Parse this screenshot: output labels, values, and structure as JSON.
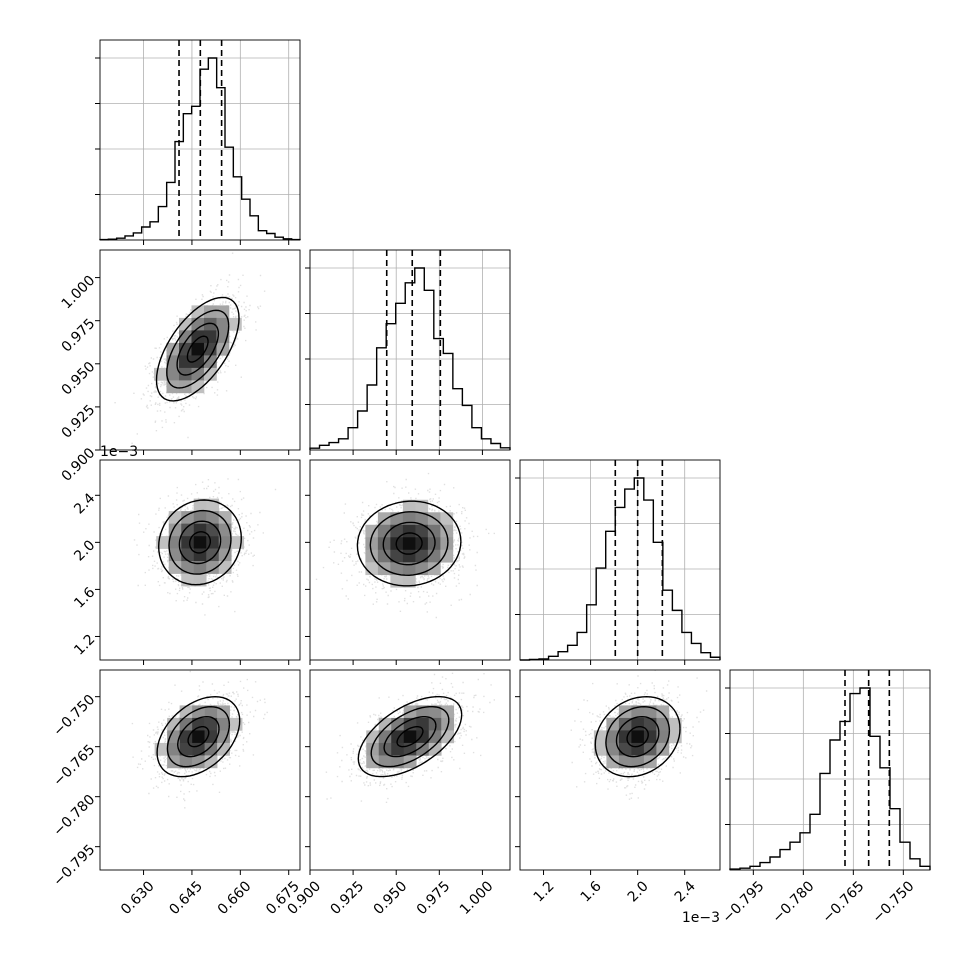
{
  "chart_data": {
    "type": "corner",
    "title": "",
    "grid": true,
    "parameters": [
      {
        "index": 0,
        "range": [
          0.6165,
          0.6785
        ],
        "ticks": [
          0.63,
          0.645,
          0.66,
          0.675
        ],
        "tick_labels": [
          "0.630",
          "0.645",
          "0.660",
          "0.675"
        ],
        "offset_text": "",
        "quantiles": [
          0.641,
          0.6476,
          0.6542
        ]
      },
      {
        "index": 1,
        "range": [
          0.9,
          1.016
        ],
        "ticks": [
          0.9,
          0.925,
          0.95,
          0.975,
          1.0
        ],
        "tick_labels": [
          "0.900",
          "0.925",
          "0.950",
          "0.975",
          "1.000"
        ],
        "offset_text": "",
        "quantiles": [
          0.9445,
          0.9593,
          0.9756
        ]
      },
      {
        "index": 2,
        "range": [
          1.0,
          2.7
        ],
        "ticks": [
          1.2,
          1.6,
          2.0,
          2.4
        ],
        "tick_labels": [
          "1.2",
          "1.6",
          "2.0",
          "2.4"
        ],
        "offset_text": "1e−3",
        "quantiles": [
          1.81,
          2.0,
          2.21
        ]
      },
      {
        "index": 3,
        "range": [
          -0.802,
          -0.742
        ],
        "ticks": [
          -0.795,
          -0.78,
          -0.765,
          -0.75
        ],
        "tick_labels": [
          "−0.795",
          "−0.780",
          "−0.765",
          "−0.750"
        ],
        "offset_text": "",
        "quantiles": [
          -0.7675,
          -0.7604,
          -0.7542
        ]
      }
    ],
    "histograms": [
      {
        "param": 0,
        "density": [
          0.002,
          0.004,
          0.01,
          0.022,
          0.038,
          0.07,
          0.098,
          0.18,
          0.31,
          0.53,
          0.68,
          0.72,
          0.92,
          0.98,
          0.82,
          0.5,
          0.34,
          0.22,
          0.13,
          0.05,
          0.035,
          0.015,
          0.006,
          0.002
        ]
      },
      {
        "param": 1,
        "density": [
          0.01,
          0.025,
          0.04,
          0.06,
          0.12,
          0.21,
          0.35,
          0.55,
          0.68,
          0.79,
          0.9,
          0.98,
          0.86,
          0.6,
          0.52,
          0.33,
          0.24,
          0.12,
          0.06,
          0.035,
          0.012
        ]
      },
      {
        "param": 2,
        "density": [
          0.0,
          0.003,
          0.006,
          0.02,
          0.045,
          0.08,
          0.15,
          0.3,
          0.5,
          0.7,
          0.83,
          0.93,
          0.99,
          0.87,
          0.64,
          0.38,
          0.27,
          0.15,
          0.09,
          0.04,
          0.015
        ]
      },
      {
        "param": 3,
        "density": [
          0.005,
          0.01,
          0.02,
          0.04,
          0.07,
          0.11,
          0.15,
          0.2,
          0.3,
          0.52,
          0.7,
          0.8,
          0.95,
          0.98,
          0.72,
          0.55,
          0.33,
          0.15,
          0.06,
          0.02
        ]
      }
    ],
    "pairs": [
      {
        "x": 0,
        "y": 1,
        "center": [
          0.6468,
          0.9585
        ],
        "spread": [
          0.0064,
          0.015
        ],
        "rho": 0.6
      },
      {
        "x": 0,
        "y": 2,
        "center": [
          0.6475,
          2.0
        ],
        "spread": [
          0.0064,
          0.18
        ],
        "rho": 0.1
      },
      {
        "x": 1,
        "y": 2,
        "center": [
          0.9575,
          1.99
        ],
        "spread": [
          0.015,
          0.18
        ],
        "rho": 0.05
      },
      {
        "x": 0,
        "y": 3,
        "center": [
          0.647,
          -0.762
        ],
        "spread": [
          0.0064,
          0.006
        ],
        "rho": 0.4
      },
      {
        "x": 1,
        "y": 3,
        "center": [
          0.958,
          -0.762
        ],
        "spread": [
          0.015,
          0.006
        ],
        "rho": 0.55
      },
      {
        "x": 2,
        "y": 3,
        "center": [
          2.0,
          -0.762
        ],
        "spread": [
          0.18,
          0.006
        ],
        "rho": 0.2
      }
    ]
  }
}
